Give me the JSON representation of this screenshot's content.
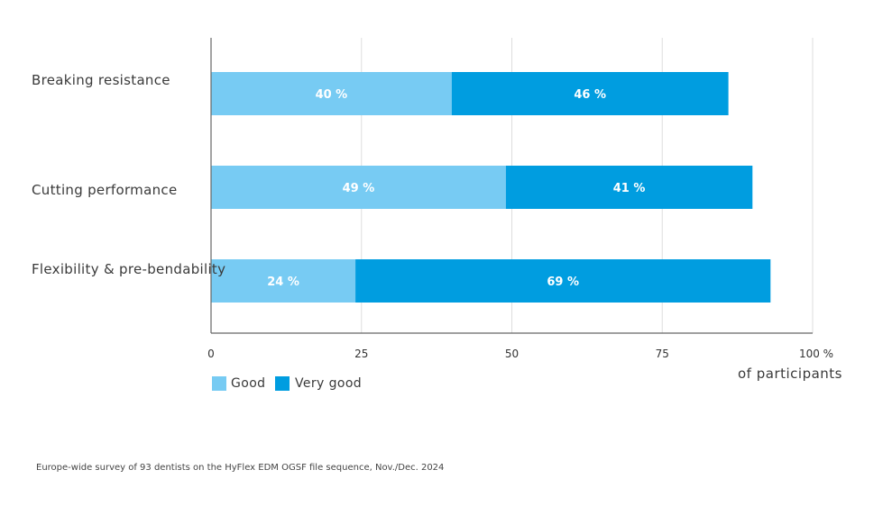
{
  "chart_data": {
    "type": "bar",
    "orientation": "horizontal",
    "stacked": true,
    "categories": [
      "Breaking resistance",
      "Cutting performance",
      "Flexibility & pre-bendability"
    ],
    "series": [
      {
        "name": "Good",
        "values": [
          40,
          49,
          24
        ],
        "labels": [
          "40 %",
          "49 %",
          "24 %"
        ],
        "color": "#77cbf3"
      },
      {
        "name": "Very good",
        "values": [
          46,
          41,
          69
        ],
        "labels": [
          "46 %",
          "41 %",
          "69 %"
        ],
        "color": "#009de0"
      }
    ],
    "xlim": [
      0,
      100
    ],
    "x_ticks": [
      0,
      25,
      50,
      75,
      100
    ],
    "x_tick_labels": [
      "0",
      "25",
      "50",
      "75",
      "100 %"
    ],
    "xlabel": "of participants",
    "grid": true,
    "legend_position": "bottom-left"
  },
  "footnote": "Europe-wide survey of 93 dentists on the HyFlex EDM OGSF file sequence, Nov./Dec. 2024",
  "colors": {
    "grid": "#dddddd",
    "axis": "#666666"
  }
}
